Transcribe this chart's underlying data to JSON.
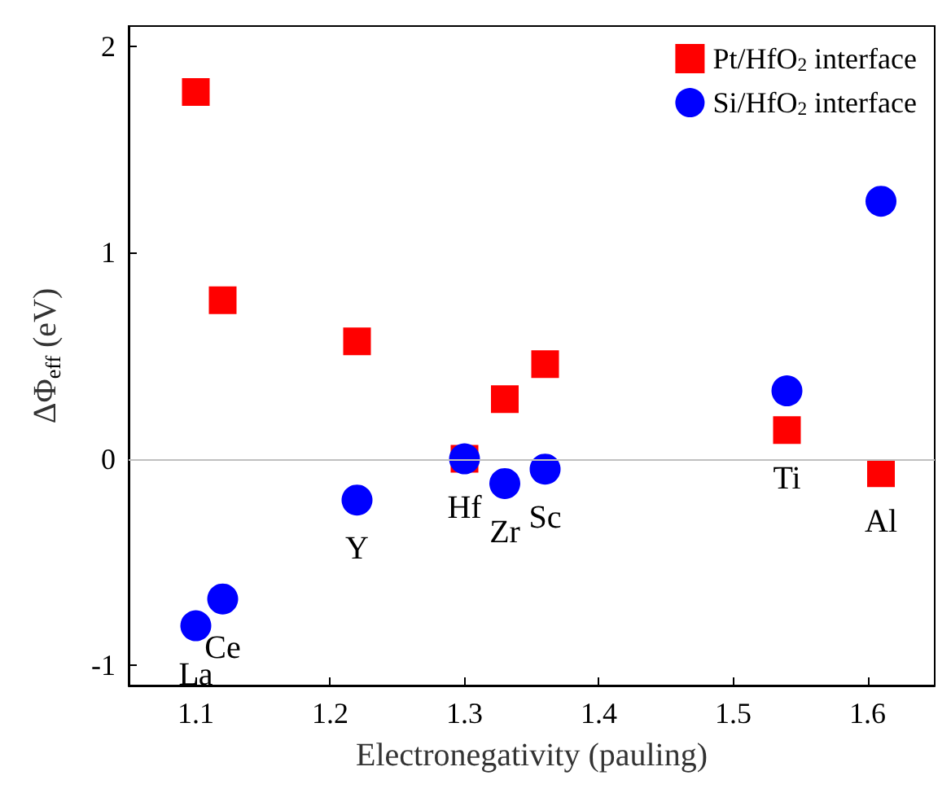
{
  "chart_data": {
    "type": "scatter",
    "xlabel": "Electronegativity (pauling)",
    "ylabel": "ΔΦ$_{eff}$ (eV)",
    "xlim": [
      1.05,
      1.65
    ],
    "xticks": [
      1.1,
      1.2,
      1.3,
      1.4,
      1.5,
      1.6
    ],
    "ylim": [
      -1.1,
      2.1
    ],
    "yticks": [
      -1,
      0,
      1,
      2
    ],
    "series": [
      {
        "name": "Pt/HfO$_{2}$ interface",
        "color": "#ff0000",
        "marker": "square",
        "x": [
          1.1,
          1.12,
          1.22,
          1.3,
          1.33,
          1.36,
          1.54,
          1.61
        ],
        "values": [
          1.78,
          0.77,
          0.57,
          0.0,
          0.29,
          0.46,
          0.14,
          -0.07
        ]
      },
      {
        "name": "Si/HfO$_{2}$ interface",
        "color": "#0000ff",
        "marker": "circle",
        "x": [
          1.1,
          1.12,
          1.22,
          1.3,
          1.33,
          1.36,
          1.54,
          1.61
        ],
        "values": [
          -0.81,
          -0.68,
          -0.2,
          0.0,
          -0.12,
          -0.05,
          0.33,
          1.25
        ]
      }
    ],
    "ref_lines": [
      {
        "axis": "y",
        "value": 0,
        "color": "#c0c0c0"
      }
    ],
    "annotations": [
      {
        "text": "La",
        "x": 1.1,
        "y": -0.81
      },
      {
        "text": "Ce",
        "x": 1.12,
        "y": -0.68
      },
      {
        "text": "Y",
        "x": 1.22,
        "y": -0.2
      },
      {
        "text": "Hf",
        "x": 1.3,
        "y": 0.0
      },
      {
        "text": "Zr",
        "x": 1.33,
        "y": -0.12
      },
      {
        "text": "Sc",
        "x": 1.36,
        "y": -0.05
      },
      {
        "text": "Ti",
        "x": 1.54,
        "y": 0.14
      },
      {
        "text": "Al",
        "x": 1.61,
        "y": -0.07
      }
    ],
    "legend": "top right",
    "grid": false
  }
}
